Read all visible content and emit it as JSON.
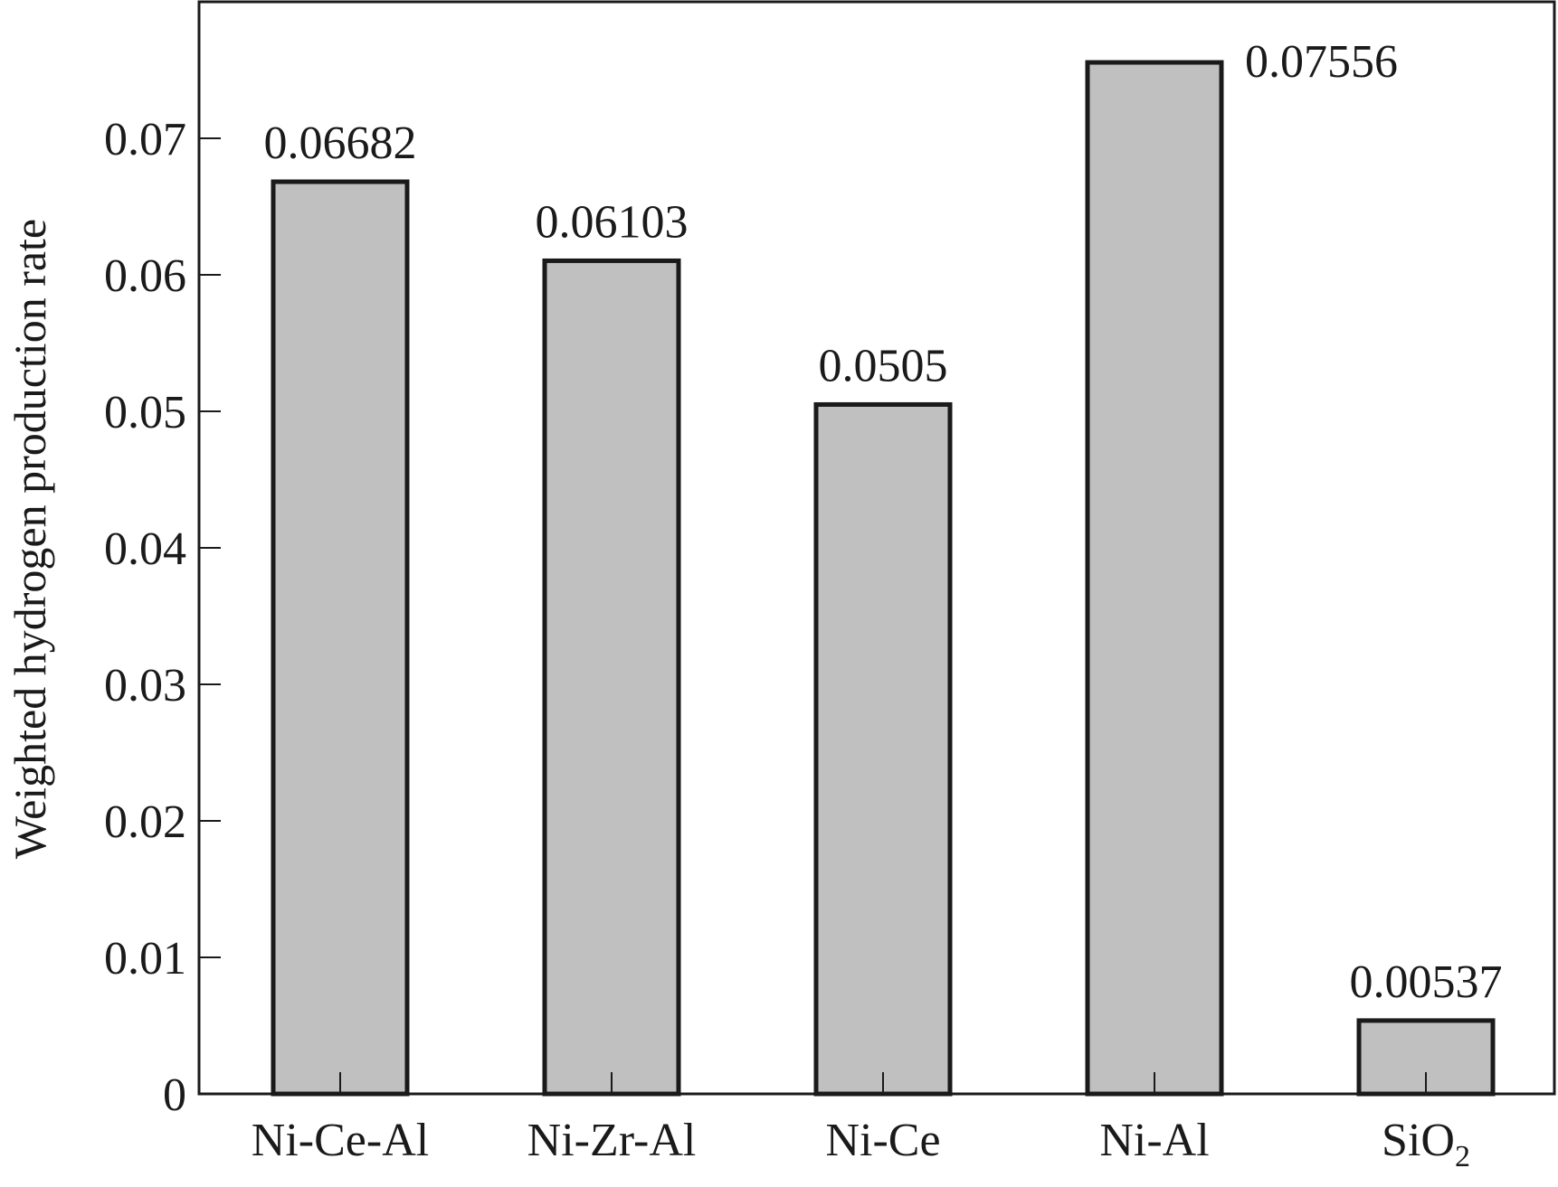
{
  "chart_data": {
    "type": "bar",
    "categories": [
      "Ni-Ce-Al",
      "Ni-Zr-Al",
      "Ni-Ce",
      "Ni-Al",
      "SiO2"
    ],
    "category_display": [
      {
        "base": "Ni-Ce-Al",
        "sub": ""
      },
      {
        "base": "Ni-Zr-Al",
        "sub": ""
      },
      {
        "base": "Ni-Ce",
        "sub": ""
      },
      {
        "base": "Ni-Al",
        "sub": ""
      },
      {
        "base": "SiO",
        "sub": "2"
      }
    ],
    "values": [
      0.06682,
      0.06103,
      0.0505,
      0.07556,
      0.00537
    ],
    "data_labels": [
      "0.06682",
      "0.06103",
      "0.0505",
      "0.07556",
      "0.00537"
    ],
    "title": "",
    "xlabel": "",
    "ylabel": "Weighted hydrogen production rate",
    "ylim": [
      0,
      0.08
    ],
    "yticks": [
      0,
      0.01,
      0.02,
      0.03,
      0.04,
      0.05,
      0.06,
      0.07
    ],
    "ytick_labels": [
      "0",
      "0.01",
      "0.02",
      "0.03",
      "0.04",
      "0.05",
      "0.06",
      "0.07"
    ],
    "grid": false,
    "legend": "none",
    "colors": {
      "bar_fill": "#c0c0c0",
      "bar_stroke": "#1a1a1a",
      "axis": "#1a1a1a"
    }
  }
}
